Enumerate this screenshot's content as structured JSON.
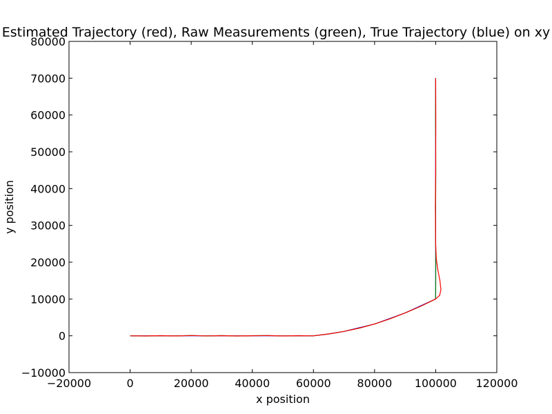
{
  "chart_data": {
    "type": "line",
    "title": "Estimated Trajectory (red), Raw Measurements (green), True Trajectory (blue) on xy",
    "xlabel": "x position",
    "ylabel": "y position",
    "xlim": [
      -20000,
      120000
    ],
    "ylim": [
      -10000,
      80000
    ],
    "xticks": [
      -20000,
      0,
      20000,
      40000,
      60000,
      80000,
      100000,
      120000
    ],
    "yticks": [
      -10000,
      0,
      10000,
      20000,
      30000,
      40000,
      50000,
      60000,
      70000,
      80000
    ],
    "xtick_labels": [
      "−20000",
      "0",
      "20000",
      "40000",
      "60000",
      "80000",
      "100000",
      "120000"
    ],
    "ytick_labels": [
      "−10000",
      "0",
      "10000",
      "20000",
      "30000",
      "40000",
      "50000",
      "60000",
      "70000",
      "80000"
    ],
    "grid": false,
    "series": [
      {
        "color": "#0000ff",
        "x": [
          0,
          20000,
          40000,
          60000,
          65000,
          70000,
          80000,
          90000,
          100000,
          100000,
          100000
        ],
        "y": [
          0,
          0,
          0,
          0,
          500,
          1200,
          3200,
          6200,
          10000,
          40000,
          70000
        ]
      },
      {
        "color": "#008000",
        "x": [
          0,
          5000,
          10000,
          15000,
          20000,
          25000,
          30000,
          35000,
          40000,
          45000,
          50000,
          55000,
          60000,
          65000,
          70000,
          75000,
          80000,
          85000,
          90000,
          95000,
          100000,
          100050,
          99950,
          100050,
          99950,
          100000
        ],
        "y": [
          0,
          -60,
          40,
          -50,
          80,
          -40,
          50,
          -70,
          30,
          60,
          -50,
          40,
          0,
          500,
          1200,
          2100,
          3200,
          4600,
          6200,
          8000,
          10000,
          20000,
          30000,
          45000,
          60000,
          70000
        ]
      },
      {
        "color": "#ff0000",
        "x": [
          0,
          5000,
          10000,
          15000,
          20000,
          25000,
          30000,
          35000,
          40000,
          45000,
          50000,
          55000,
          60000,
          65000,
          70000,
          75000,
          80000,
          85000,
          90000,
          95000,
          100000,
          101300,
          101700,
          101400,
          100700,
          100200,
          100000,
          99900,
          100000,
          100050,
          100000
        ],
        "y": [
          0,
          -40,
          30,
          -40,
          60,
          -30,
          40,
          -50,
          20,
          50,
          -40,
          30,
          0,
          500,
          1200,
          2100,
          3200,
          4600,
          6200,
          8000,
          10000,
          11000,
          12500,
          15000,
          18000,
          21000,
          25000,
          35000,
          45000,
          58000,
          70000
        ]
      }
    ]
  }
}
